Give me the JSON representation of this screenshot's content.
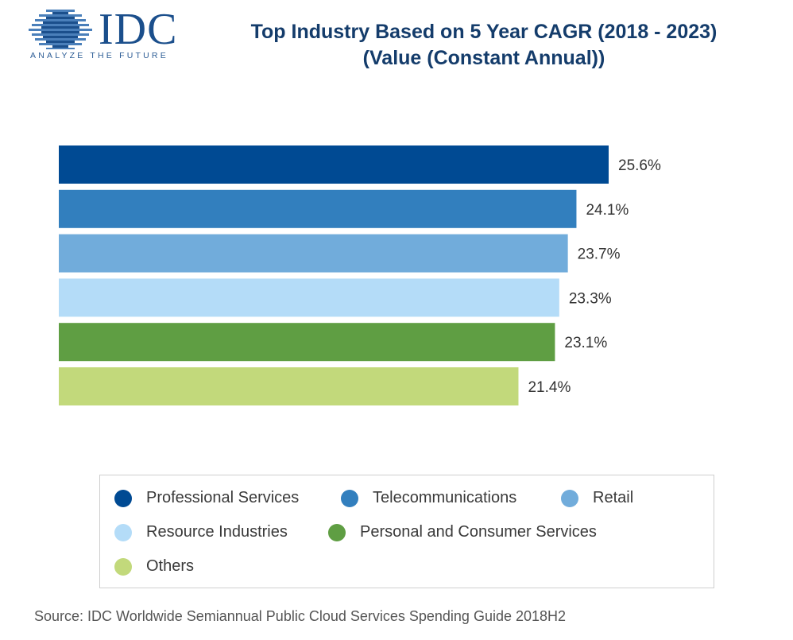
{
  "logo": {
    "letters": "IDC",
    "tagline": "ANALYZE THE FUTURE",
    "color": "#1b4f8c"
  },
  "header": {
    "title_line1": "Top Industry Based on 5 Year CAGR (2018 - 2023)",
    "title_line2": "(Value (Constant Annual))"
  },
  "chart_data": {
    "type": "bar",
    "orientation": "horizontal",
    "categories": [
      "Professional Services",
      "Telecommunications",
      "Retail",
      "Resource Industries",
      "Personal and Consumer Services",
      "Others"
    ],
    "values": [
      25.6,
      24.1,
      23.7,
      23.3,
      23.1,
      21.4
    ],
    "value_labels": [
      "25.6%",
      "24.1%",
      "23.7%",
      "23.3%",
      "23.1%",
      "21.4%"
    ],
    "colors": [
      "#004a93",
      "#327fbe",
      "#71acdb",
      "#b4dcf8",
      "#5f9e43",
      "#c2d97b"
    ],
    "xlim": [
      0,
      25.6
    ],
    "grid": false,
    "legend_position": "bottom"
  },
  "legend": {
    "items": [
      {
        "label": "Professional Services",
        "color": "#004a93"
      },
      {
        "label": "Telecommunications",
        "color": "#327fbe"
      },
      {
        "label": "Retail",
        "color": "#71acdb"
      },
      {
        "label": "Resource Industries",
        "color": "#b4dcf8"
      },
      {
        "label": "Personal and Consumer Services",
        "color": "#5f9e43"
      },
      {
        "label": "Others",
        "color": "#c2d97b"
      }
    ]
  },
  "footer": {
    "source": "Source: IDC Worldwide Semiannual Public Cloud Services Spending Guide 2018H2"
  }
}
